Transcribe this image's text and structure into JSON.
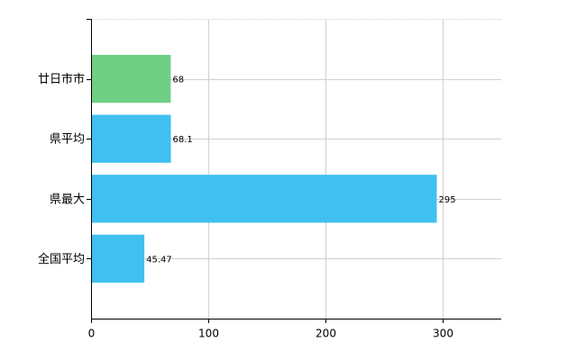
{
  "chart_data": {
    "type": "hbar",
    "categories": [
      "廿日市市",
      "県平均",
      "県最大",
      "全国平均"
    ],
    "values": [
      68,
      68.1,
      295,
      45.47
    ],
    "colors": [
      "#6fd084",
      "#40c0f0",
      "#40c0f0",
      "#40c0f0"
    ],
    "xlim": [
      0,
      350
    ],
    "xticks": [
      0,
      100,
      200,
      300
    ],
    "grid": true
  }
}
